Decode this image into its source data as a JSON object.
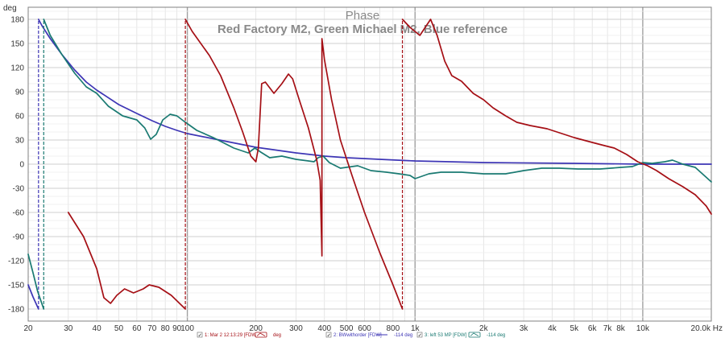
{
  "chart_data": {
    "type": "line",
    "title": "Phase",
    "subtitle": "Red Factory M2, Green Michael M2, Blue reference",
    "ylabel": "deg",
    "xunit": "Hz",
    "xscale": "log",
    "xlim": [
      20,
      20000
    ],
    "ylim": [
      -195,
      195
    ],
    "y_ticks": [
      180,
      150,
      120,
      90,
      60,
      30,
      0,
      -30,
      -60,
      -90,
      -120,
      -150,
      -180
    ],
    "x_ticks": [
      {
        "value": 20,
        "label": "20"
      },
      {
        "value": 30,
        "label": "30"
      },
      {
        "value": 40,
        "label": "40"
      },
      {
        "value": 50,
        "label": "50"
      },
      {
        "value": 60,
        "label": "60"
      },
      {
        "value": 70,
        "label": "70"
      },
      {
        "value": 80,
        "label": "80"
      },
      {
        "value": 90,
        "label": "90"
      },
      {
        "value": 100,
        "label": "100"
      },
      {
        "value": 200,
        "label": "200"
      },
      {
        "value": 300,
        "label": "300"
      },
      {
        "value": 400,
        "label": "400"
      },
      {
        "value": 500,
        "label": "500"
      },
      {
        "value": 600,
        "label": "600"
      },
      {
        "value": 800,
        "label": "800"
      },
      {
        "value": 1000,
        "label": "1k"
      },
      {
        "value": 2000,
        "label": "2k"
      },
      {
        "value": 3000,
        "label": "3k"
      },
      {
        "value": 4000,
        "label": "4k"
      },
      {
        "value": 5000,
        "label": "5k"
      },
      {
        "value": 6000,
        "label": "6k"
      },
      {
        "value": 7000,
        "label": "7k"
      },
      {
        "value": 8000,
        "label": "8k"
      },
      {
        "value": 10000,
        "label": "10k"
      },
      {
        "value": 20000,
        "label": "20.0k Hz"
      }
    ],
    "series": [
      {
        "name": "Red Factory M2",
        "color": "#a50f15",
        "wraps": [
          {
            "x": 98,
            "from": -180,
            "to": 180
          },
          {
            "x": 390,
            "from": -114,
            "to": 156
          },
          {
            "x": 880,
            "from": -180,
            "to": 180
          }
        ],
        "segments": [
          [
            [
              30,
              -60
            ],
            [
              35,
              -90
            ],
            [
              40,
              -130
            ],
            [
              43,
              -166
            ],
            [
              46,
              -173
            ],
            [
              49,
              -163
            ],
            [
              53,
              -155
            ],
            [
              58,
              -160
            ],
            [
              64,
              -155
            ],
            [
              68,
              -150
            ],
            [
              75,
              -153
            ],
            [
              85,
              -163
            ],
            [
              98,
              -180
            ]
          ],
          [
            [
              98,
              180
            ],
            [
              105,
              165
            ],
            [
              125,
              135
            ],
            [
              140,
              110
            ],
            [
              160,
              70
            ],
            [
              175,
              40
            ],
            [
              190,
              10
            ],
            [
              200,
              3
            ],
            [
              205,
              20
            ],
            [
              212,
              100
            ],
            [
              220,
              102
            ],
            [
              240,
              88
            ],
            [
              260,
              100
            ],
            [
              278,
              112
            ],
            [
              290,
              106
            ],
            [
              310,
              80
            ],
            [
              340,
              45
            ],
            [
              370,
              5
            ],
            [
              383,
              -20
            ],
            [
              390,
              -114
            ],
            [
              390,
              156
            ],
            [
              400,
              130
            ],
            [
              430,
              80
            ],
            [
              470,
              30
            ],
            [
              530,
              -15
            ],
            [
              600,
              -60
            ],
            [
              700,
              -110
            ],
            [
              800,
              -150
            ],
            [
              880,
              -180
            ]
          ],
          [
            [
              880,
              180
            ],
            [
              950,
              170
            ],
            [
              1050,
              160
            ],
            [
              1170,
              180
            ],
            [
              1250,
              160
            ],
            [
              1350,
              128
            ],
            [
              1450,
              110
            ],
            [
              1600,
              103
            ],
            [
              1800,
              88
            ],
            [
              2000,
              80
            ],
            [
              2200,
              70
            ],
            [
              2500,
              60
            ],
            [
              2800,
              52
            ],
            [
              3200,
              48
            ],
            [
              3800,
              44
            ],
            [
              4200,
              40
            ],
            [
              5000,
              33
            ],
            [
              6000,
              27
            ],
            [
              6800,
              23
            ],
            [
              7500,
              20
            ],
            [
              8500,
              12
            ],
            [
              9500,
              3
            ],
            [
              10500,
              -2
            ],
            [
              11500,
              -8
            ],
            [
              13000,
              -18
            ],
            [
              15000,
              -28
            ],
            [
              17000,
              -38
            ],
            [
              19000,
              -52
            ],
            [
              20000,
              -62
            ]
          ]
        ]
      },
      {
        "name": "Green Michael M2",
        "color": "#1a7a72",
        "wraps": [
          {
            "x": 23.4,
            "from": -180,
            "to": 180
          }
        ],
        "segments": [
          [
            [
              20,
              -112
            ],
            [
              21,
              -135
            ],
            [
              22,
              -158
            ],
            [
              23.4,
              -180
            ]
          ],
          [
            [
              23.4,
              180
            ],
            [
              25,
              160
            ],
            [
              28,
              137
            ],
            [
              32,
              113
            ],
            [
              36,
              96
            ],
            [
              40,
              88
            ],
            [
              45,
              72
            ],
            [
              52,
              60
            ],
            [
              60,
              55
            ],
            [
              65,
              45
            ],
            [
              69,
              31
            ],
            [
              73,
              37
            ],
            [
              78,
              55
            ],
            [
              84,
              62
            ],
            [
              90,
              60
            ],
            [
              97,
              53
            ],
            [
              110,
              42
            ],
            [
              130,
              33
            ],
            [
              160,
              20
            ],
            [
              185,
              14
            ],
            [
              198,
              20
            ],
            [
              210,
              15
            ],
            [
              230,
              8
            ],
            [
              260,
              10
            ],
            [
              300,
              6
            ],
            [
              340,
              4
            ],
            [
              360,
              3
            ],
            [
              375,
              8
            ],
            [
              395,
              10
            ],
            [
              420,
              2
            ],
            [
              470,
              -5
            ],
            [
              560,
              -2
            ],
            [
              640,
              -8
            ],
            [
              750,
              -10
            ],
            [
              850,
              -12
            ],
            [
              950,
              -14
            ],
            [
              1000,
              -18
            ],
            [
              1150,
              -12
            ],
            [
              1300,
              -10
            ],
            [
              1600,
              -10
            ],
            [
              2000,
              -12
            ],
            [
              2500,
              -12
            ],
            [
              3000,
              -8
            ],
            [
              3600,
              -5
            ],
            [
              4300,
              -5
            ],
            [
              5200,
              -6
            ],
            [
              6500,
              -6
            ],
            [
              8000,
              -4
            ],
            [
              9000,
              -3
            ],
            [
              10000,
              2
            ],
            [
              11000,
              1
            ],
            [
              12500,
              3
            ],
            [
              13500,
              5
            ],
            [
              15000,
              0
            ],
            [
              17000,
              -4
            ],
            [
              20000,
              -22
            ]
          ]
        ]
      },
      {
        "name": "Blue reference",
        "color": "#3d35b5",
        "wraps": [
          {
            "x": 22.2,
            "from": -180,
            "to": 180
          }
        ],
        "segments": [
          [
            [
              20,
              -150
            ],
            [
              21,
              -165
            ],
            [
              22.2,
              -180
            ]
          ],
          [
            [
              22.2,
              180
            ],
            [
              23,
              172
            ],
            [
              25,
              156
            ],
            [
              28,
              137
            ],
            [
              32,
              117
            ],
            [
              36,
              102
            ],
            [
              40,
              92
            ],
            [
              50,
              74
            ],
            [
              60,
              63
            ],
            [
              70,
              54
            ],
            [
              80,
              47
            ],
            [
              90,
              42
            ],
            [
              100,
              38
            ],
            [
              150,
              28
            ],
            [
              200,
              21
            ],
            [
              300,
              14
            ],
            [
              400,
              10
            ],
            [
              500,
              8
            ],
            [
              700,
              6
            ],
            [
              1000,
              4
            ],
            [
              2000,
              2
            ],
            [
              5000,
              1
            ],
            [
              10000,
              0
            ],
            [
              20000,
              0
            ]
          ]
        ]
      }
    ],
    "legend": [
      {
        "check": "✓",
        "id": "1: Mar 2 12:13:29 [FDW]",
        "unit": "deg",
        "color": "#a50f15"
      },
      {
        "check": "✓",
        "id": "2: BWwithorder [FDW]",
        "unit": "-114 deg",
        "color": "#3d35b5"
      },
      {
        "check": "✓",
        "id": "3: left 53 MP [FDW]",
        "unit": "-114 deg",
        "color": "#1a7a72"
      }
    ]
  }
}
